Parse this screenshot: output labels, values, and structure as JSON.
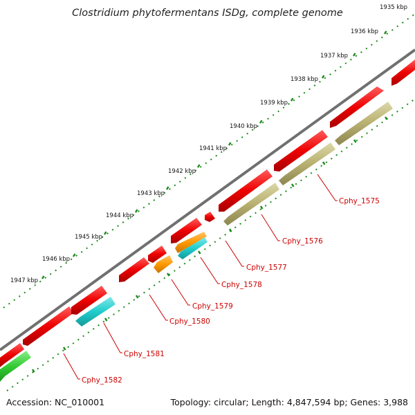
{
  "title": "Clostridium phytofermentans ISDg, complete genome",
  "accession": "Accession: NC_010001",
  "summary": "Topology: circular; Length: 4,847,594 bp; Genes: 3,988",
  "scale_labels": [
    "1935 kbp",
    "1936 kbp",
    "1937 kbp",
    "1938 kbp",
    "1939 kbp",
    "1940 kbp",
    "1941 kbp",
    "1942 kbp",
    "1943 kbp",
    "1944 kbp",
    "1945 kbp",
    "1946 kbp",
    "1947 kbp"
  ],
  "gene_labels": [
    "Cphy_1575",
    "Cphy_1576",
    "Cphy_1577",
    "Cphy_1578",
    "Cphy_1579",
    "Cphy_1580",
    "Cphy_1581",
    "Cphy_1582"
  ],
  "colors": {
    "gene": "#ee0000",
    "backbone": "#707070",
    "ticks": "#1a8a1a",
    "label": "#cc0000",
    "cyan": "#22cccc",
    "orange": "#ff9900",
    "khaki": "#b8b070",
    "green": "#33cc33"
  }
}
